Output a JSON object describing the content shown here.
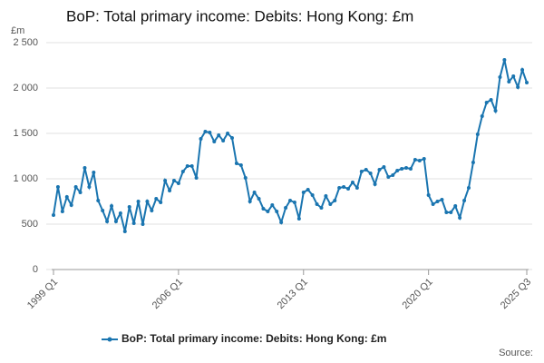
{
  "chart_data": {
    "type": "line",
    "title": "BoP: Total primary income: Debits: Hong Kong: £m",
    "y_label": "£m",
    "source": "Source:",
    "categories": [
      "1999 Q1",
      null,
      null,
      null,
      null,
      null,
      null,
      null,
      null,
      null,
      null,
      null,
      null,
      null,
      null,
      null,
      null,
      null,
      null,
      null,
      null,
      null,
      null,
      null,
      null,
      null,
      null,
      null,
      "2006 Q1",
      null,
      null,
      null,
      null,
      null,
      null,
      null,
      null,
      null,
      null,
      null,
      null,
      null,
      null,
      null,
      null,
      null,
      null,
      null,
      null,
      null,
      null,
      null,
      null,
      null,
      null,
      null,
      "2013 Q1",
      null,
      null,
      null,
      null,
      null,
      null,
      null,
      null,
      null,
      null,
      null,
      null,
      null,
      null,
      null,
      null,
      null,
      null,
      null,
      null,
      null,
      null,
      null,
      null,
      null,
      null,
      null,
      "2020 Q1",
      null,
      null,
      null,
      null,
      null,
      null,
      null,
      null,
      null,
      null,
      null,
      null,
      null,
      null,
      null,
      null,
      null,
      null,
      null,
      null,
      null,
      "2025 Q3"
    ],
    "series": [
      {
        "name": "BoP: Total primary income: Debits: Hong Kong: £m",
        "color": "#1a75b0",
        "values": [
          600,
          910,
          640,
          800,
          710,
          910,
          850,
          1120,
          910,
          1070,
          760,
          650,
          530,
          700,
          530,
          620,
          420,
          690,
          510,
          750,
          500,
          750,
          650,
          780,
          740,
          980,
          870,
          980,
          950,
          1080,
          1140,
          1140,
          1010,
          1440,
          1520,
          1510,
          1410,
          1480,
          1420,
          1500,
          1450,
          1170,
          1150,
          1010,
          750,
          850,
          780,
          670,
          640,
          710,
          640,
          520,
          680,
          760,
          740,
          560,
          850,
          880,
          820,
          720,
          680,
          810,
          720,
          760,
          900,
          910,
          890,
          960,
          900,
          1080,
          1100,
          1060,
          940,
          1100,
          1130,
          1020,
          1040,
          1090,
          1110,
          1120,
          1110,
          1210,
          1200,
          1220,
          820,
          720,
          750,
          770,
          630,
          630,
          700,
          570,
          760,
          900,
          1180,
          1490,
          1690,
          1840,
          1870,
          1750,
          2120,
          2310,
          2070,
          2130,
          2010,
          2200,
          2060
        ]
      }
    ],
    "ylim": [
      0,
      2500
    ],
    "yticks": [
      0,
      500,
      {
        "value": 1000,
        "label": "1 000"
      },
      {
        "value": 1500,
        "label": "1 500"
      },
      {
        "value": 2000,
        "label": "2 000"
      },
      {
        "value": 2500,
        "label": "2 500"
      }
    ],
    "grid": true,
    "legend": "bottom"
  }
}
